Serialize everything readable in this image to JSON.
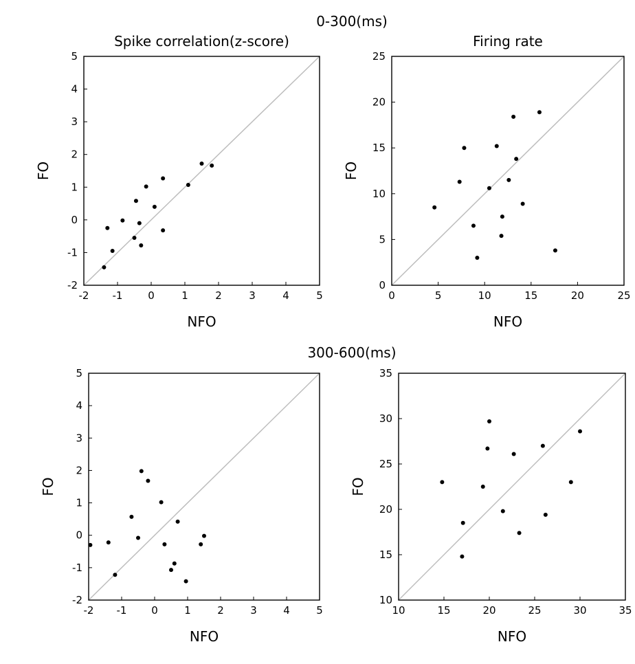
{
  "figure": {
    "section_titles": [
      "0-300(ms)",
      "300-600(ms)"
    ]
  },
  "chart_data": [
    {
      "type": "scatter",
      "section": "0-300(ms)",
      "title": "Spike correlation(z-score)",
      "xlabel": "NFO",
      "ylabel": "FO",
      "xlim": [
        -2,
        5
      ],
      "ylim": [
        -2,
        5
      ],
      "xticks": [
        "-2",
        "-1",
        "0",
        "1",
        "2",
        "3",
        "4",
        "5"
      ],
      "yticks": [
        "-2",
        "-1",
        "0",
        "1",
        "2",
        "3",
        "4",
        "5"
      ],
      "diagonal": true,
      "grid": false,
      "points": [
        {
          "x": -1.4,
          "y": -1.45
        },
        {
          "x": -1.3,
          "y": -0.25
        },
        {
          "x": -1.15,
          "y": -0.95
        },
        {
          "x": -0.85,
          "y": -0.02
        },
        {
          "x": -0.45,
          "y": 0.58
        },
        {
          "x": -0.5,
          "y": -0.55
        },
        {
          "x": -0.35,
          "y": -0.1
        },
        {
          "x": -0.3,
          "y": -0.78
        },
        {
          "x": -0.15,
          "y": 1.02
        },
        {
          "x": 0.1,
          "y": 0.4
        },
        {
          "x": 0.35,
          "y": 1.27
        },
        {
          "x": 0.35,
          "y": -0.32
        },
        {
          "x": 1.1,
          "y": 1.07
        },
        {
          "x": 1.5,
          "y": 1.72
        },
        {
          "x": 1.8,
          "y": 1.66
        }
      ]
    },
    {
      "type": "scatter",
      "section": "0-300(ms)",
      "title": "Firing rate",
      "xlabel": "NFO",
      "ylabel": "FO",
      "xlim": [
        0,
        25
      ],
      "ylim": [
        0,
        25
      ],
      "xticks": [
        "0",
        "5",
        "10",
        "15",
        "20",
        "25"
      ],
      "yticks": [
        "0",
        "5",
        "10",
        "15",
        "20",
        "25"
      ],
      "diagonal": true,
      "grid": false,
      "points": [
        {
          "x": 4.6,
          "y": 8.5
        },
        {
          "x": 7.3,
          "y": 11.3
        },
        {
          "x": 7.8,
          "y": 15.0
        },
        {
          "x": 8.8,
          "y": 6.5
        },
        {
          "x": 9.2,
          "y": 3.0
        },
        {
          "x": 10.5,
          "y": 10.6
        },
        {
          "x": 11.3,
          "y": 15.2
        },
        {
          "x": 11.9,
          "y": 7.5
        },
        {
          "x": 11.8,
          "y": 5.4
        },
        {
          "x": 12.6,
          "y": 11.5
        },
        {
          "x": 13.1,
          "y": 18.4
        },
        {
          "x": 13.4,
          "y": 13.8
        },
        {
          "x": 14.1,
          "y": 8.9
        },
        {
          "x": 15.9,
          "y": 18.9
        },
        {
          "x": 17.6,
          "y": 3.8
        }
      ]
    },
    {
      "type": "scatter",
      "section": "300-600(ms)",
      "title": "",
      "xlabel": "NFO",
      "ylabel": "FO",
      "xlim": [
        -2,
        5
      ],
      "ylim": [
        -2,
        5
      ],
      "xticks": [
        "-2",
        "-1",
        "0",
        "1",
        "2",
        "3",
        "4",
        "5"
      ],
      "yticks": [
        "-2",
        "-1",
        "0",
        "1",
        "2",
        "3",
        "4",
        "5"
      ],
      "diagonal": true,
      "grid": false,
      "points": [
        {
          "x": -1.95,
          "y": -0.3
        },
        {
          "x": -1.4,
          "y": -0.22
        },
        {
          "x": -1.2,
          "y": -1.22
        },
        {
          "x": -0.7,
          "y": 0.57
        },
        {
          "x": -0.5,
          "y": -0.08
        },
        {
          "x": -0.4,
          "y": 1.98
        },
        {
          "x": -0.2,
          "y": 1.68
        },
        {
          "x": 0.2,
          "y": 1.02
        },
        {
          "x": 0.3,
          "y": -0.28
        },
        {
          "x": 0.5,
          "y": -1.07
        },
        {
          "x": 0.6,
          "y": -0.87
        },
        {
          "x": 0.7,
          "y": 0.42
        },
        {
          "x": 0.95,
          "y": -1.42
        },
        {
          "x": 1.4,
          "y": -0.28
        },
        {
          "x": 1.5,
          "y": -0.02
        }
      ]
    },
    {
      "type": "scatter",
      "section": "300-600(ms)",
      "title": "",
      "xlabel": "NFO",
      "ylabel": "FO",
      "xlim": [
        10,
        35
      ],
      "ylim": [
        10,
        35
      ],
      "xticks": [
        "10",
        "15",
        "20",
        "25",
        "30",
        "35"
      ],
      "yticks": [
        "10",
        "15",
        "20",
        "25",
        "30",
        "35"
      ],
      "diagonal": true,
      "grid": false,
      "points": [
        {
          "x": 14.8,
          "y": 23.0
        },
        {
          "x": 17.1,
          "y": 18.5
        },
        {
          "x": 17.0,
          "y": 14.8
        },
        {
          "x": 19.3,
          "y": 22.5
        },
        {
          "x": 19.8,
          "y": 26.7
        },
        {
          "x": 20.0,
          "y": 29.7
        },
        {
          "x": 21.5,
          "y": 19.8
        },
        {
          "x": 22.7,
          "y": 26.1
        },
        {
          "x": 23.3,
          "y": 17.4
        },
        {
          "x": 25.9,
          "y": 27.0
        },
        {
          "x": 26.2,
          "y": 19.4
        },
        {
          "x": 29.0,
          "y": 23.0
        },
        {
          "x": 30.0,
          "y": 28.6
        }
      ]
    }
  ]
}
